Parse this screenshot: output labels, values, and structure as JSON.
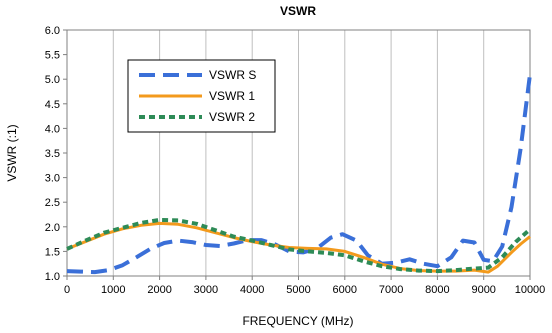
{
  "chart_data": {
    "type": "line",
    "title": "VSWR",
    "xlabel": "FREQUENCY (MHz)",
    "ylabel": "VSWR (:1)",
    "xlim": [
      0,
      10000
    ],
    "ylim": [
      1.0,
      6.0
    ],
    "x_ticks": [
      "0",
      "1000",
      "2000",
      "3000",
      "4000",
      "5000",
      "6000",
      "7000",
      "8000",
      "9000",
      "10000"
    ],
    "y_ticks": [
      "1.0",
      "1.5",
      "2.0",
      "2.5",
      "3.0",
      "3.5",
      "4.0",
      "4.5",
      "5.0",
      "5.5",
      "6.0"
    ],
    "grid": "vertical",
    "legend_position": "upper-left",
    "series": [
      {
        "name": "VSWR S",
        "color": "#3a6fd8",
        "dash": "long-dash",
        "points": [
          [
            0,
            1.1
          ],
          [
            300,
            1.09
          ],
          [
            600,
            1.08
          ],
          [
            900,
            1.12
          ],
          [
            1200,
            1.22
          ],
          [
            1500,
            1.38
          ],
          [
            1800,
            1.55
          ],
          [
            2100,
            1.67
          ],
          [
            2400,
            1.72
          ],
          [
            2700,
            1.69
          ],
          [
            3000,
            1.63
          ],
          [
            3300,
            1.61
          ],
          [
            3600,
            1.66
          ],
          [
            3900,
            1.73
          ],
          [
            4200,
            1.73
          ],
          [
            4500,
            1.64
          ],
          [
            4800,
            1.5
          ],
          [
            5100,
            1.48
          ],
          [
            5400,
            1.56
          ],
          [
            5700,
            1.78
          ],
          [
            5950,
            1.85
          ],
          [
            6250,
            1.72
          ],
          [
            6500,
            1.42
          ],
          [
            6800,
            1.25
          ],
          [
            7100,
            1.27
          ],
          [
            7400,
            1.34
          ],
          [
            7700,
            1.25
          ],
          [
            8000,
            1.2
          ],
          [
            8300,
            1.38
          ],
          [
            8550,
            1.72
          ],
          [
            8800,
            1.68
          ],
          [
            9000,
            1.33
          ],
          [
            9200,
            1.3
          ],
          [
            9400,
            1.6
          ],
          [
            9600,
            2.4
          ],
          [
            9800,
            3.6
          ],
          [
            10000,
            5.1
          ]
        ]
      },
      {
        "name": "VSWR 1",
        "color": "#f39a1c",
        "dash": "solid",
        "points": [
          [
            0,
            1.55
          ],
          [
            400,
            1.7
          ],
          [
            800,
            1.85
          ],
          [
            1200,
            1.96
          ],
          [
            1600,
            2.03
          ],
          [
            2000,
            2.07
          ],
          [
            2400,
            2.05
          ],
          [
            2800,
            1.98
          ],
          [
            3200,
            1.88
          ],
          [
            3600,
            1.78
          ],
          [
            4000,
            1.7
          ],
          [
            4400,
            1.63
          ],
          [
            4800,
            1.58
          ],
          [
            5200,
            1.56
          ],
          [
            5600,
            1.55
          ],
          [
            6000,
            1.5
          ],
          [
            6400,
            1.38
          ],
          [
            6800,
            1.24
          ],
          [
            7200,
            1.15
          ],
          [
            7600,
            1.11
          ],
          [
            8000,
            1.1
          ],
          [
            8400,
            1.1
          ],
          [
            8800,
            1.12
          ],
          [
            9100,
            1.08
          ],
          [
            9300,
            1.2
          ],
          [
            9600,
            1.48
          ],
          [
            9800,
            1.65
          ],
          [
            10000,
            1.8
          ]
        ]
      },
      {
        "name": "VSWR 2",
        "color": "#2e8b57",
        "dash": "short-dash",
        "points": [
          [
            0,
            1.55
          ],
          [
            400,
            1.72
          ],
          [
            800,
            1.88
          ],
          [
            1200,
            1.98
          ],
          [
            1600,
            2.08
          ],
          [
            2000,
            2.14
          ],
          [
            2400,
            2.13
          ],
          [
            2800,
            2.06
          ],
          [
            3200,
            1.93
          ],
          [
            3600,
            1.8
          ],
          [
            4000,
            1.72
          ],
          [
            4400,
            1.63
          ],
          [
            4800,
            1.54
          ],
          [
            5200,
            1.5
          ],
          [
            5600,
            1.47
          ],
          [
            6000,
            1.42
          ],
          [
            6400,
            1.3
          ],
          [
            6800,
            1.2
          ],
          [
            7200,
            1.14
          ],
          [
            7600,
            1.11
          ],
          [
            8000,
            1.1
          ],
          [
            8400,
            1.12
          ],
          [
            8800,
            1.15
          ],
          [
            9100,
            1.17
          ],
          [
            9400,
            1.38
          ],
          [
            9700,
            1.7
          ],
          [
            10000,
            1.95
          ]
        ]
      }
    ]
  }
}
